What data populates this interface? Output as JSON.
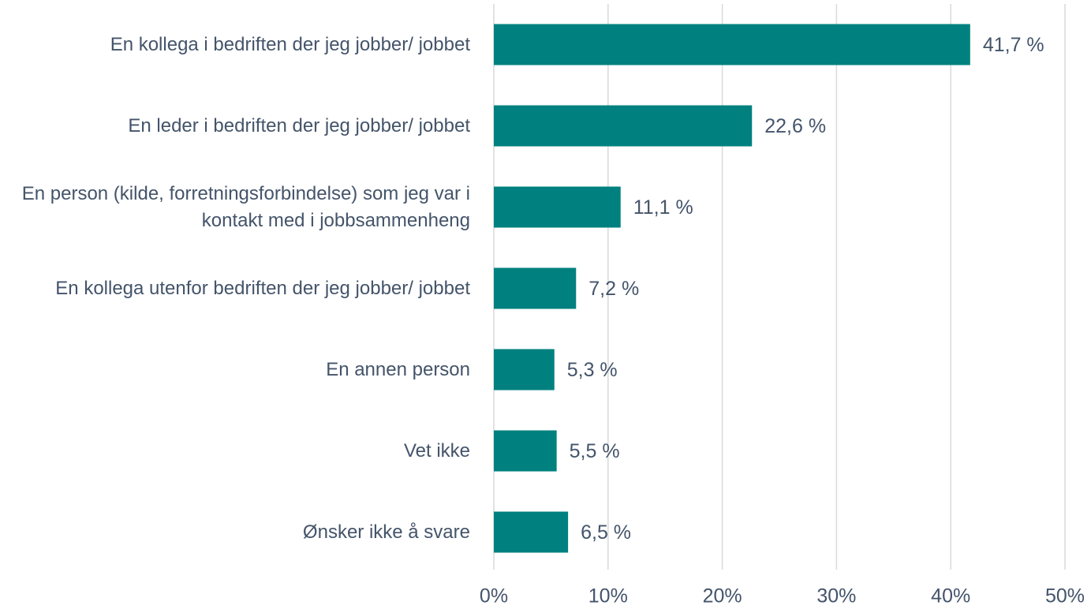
{
  "chart_data": {
    "type": "barh",
    "categories": [
      "En kollega i bedriften der jeg jobber/ jobbet",
      "En leder i bedriften der jeg jobber/ jobbet",
      "En person (kilde, forretningsforbindelse) som jeg var i kontakt med i jobbsammenheng",
      "En kollega utenfor bedriften der jeg jobber/ jobbet",
      "En annen person",
      "Vet ikke",
      "Ønsker ikke å svare"
    ],
    "values": [
      41.7,
      22.6,
      11.1,
      7.2,
      5.3,
      5.5,
      6.5
    ],
    "value_labels": [
      "41,7 %",
      "22,6 %",
      "11,1 %",
      "7,2 %",
      "5,3 %",
      "5,5 %",
      "6,5 %"
    ],
    "color": "#00817f",
    "xlim": [
      0,
      50
    ],
    "xticks": [
      {
        "value": 0,
        "label": "0%"
      },
      {
        "value": 10,
        "label": "10%"
      },
      {
        "value": 20,
        "label": "20%"
      },
      {
        "value": 30,
        "label": "30%"
      },
      {
        "value": 40,
        "label": "40%"
      },
      {
        "value": 50,
        "label": "50%"
      }
    ],
    "grid": true
  }
}
